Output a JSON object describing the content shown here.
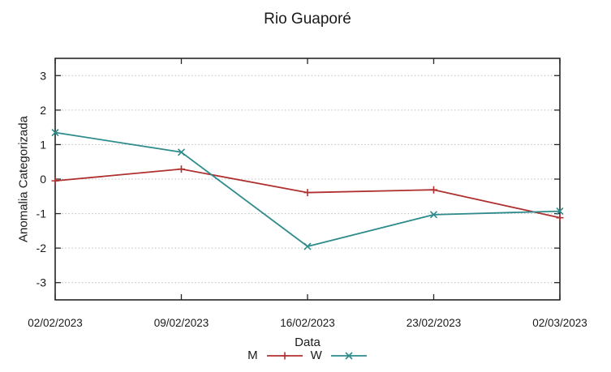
{
  "chart_data": {
    "type": "line",
    "title": "Rio Guaporé",
    "xlabel": "Data",
    "ylabel": "Anomalia Categorizada",
    "x_categories": [
      "02/02/2023",
      "09/02/2023",
      "16/02/2023",
      "23/02/2023",
      "02/03/2023"
    ],
    "yticks": [
      -3,
      -2,
      -1,
      0,
      1,
      2,
      3
    ],
    "ylim": [
      -3.5,
      3.5
    ],
    "grid": "horizontal-dotted",
    "legend_position": "bottom-center",
    "series": [
      {
        "name": "M",
        "color": "#b03030",
        "marker": "plus",
        "values": [
          -0.05,
          0.29,
          -0.39,
          -0.31,
          -1.12
        ]
      },
      {
        "name": "W",
        "color": "#2e8b8b",
        "marker": "cross",
        "values": [
          1.35,
          0.78,
          -1.95,
          -1.03,
          -0.93
        ]
      }
    ]
  }
}
